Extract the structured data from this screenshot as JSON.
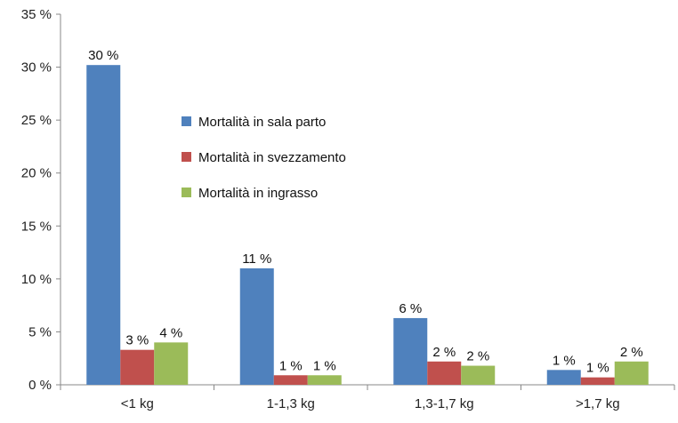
{
  "chart_data": {
    "type": "bar",
    "categories": [
      "<1 kg",
      "1-1,3 kg",
      "1,3-1,7 kg",
      ">1,7 kg"
    ],
    "series": [
      {
        "name": "Mortalità in sala parto",
        "color": "#4f81bd",
        "values": [
          30.2,
          11.0,
          6.3,
          1.4
        ],
        "labels": [
          "30 %",
          "11 %",
          "6 %",
          "1 %"
        ]
      },
      {
        "name": "Mortalità in svezzamento",
        "color": "#c0504d",
        "values": [
          3.3,
          0.9,
          2.2,
          0.7
        ],
        "labels": [
          "3 %",
          "1 %",
          "2 %",
          "1 %"
        ]
      },
      {
        "name": "Mortalità in ingrasso",
        "color": "#9bbb59",
        "values": [
          4.0,
          0.9,
          1.8,
          2.2
        ],
        "labels": [
          "4 %",
          "1 %",
          "2 %",
          "2 %"
        ]
      }
    ],
    "yticks": [
      0,
      5,
      10,
      15,
      20,
      25,
      30,
      35
    ],
    "ytick_labels": [
      "0 %",
      "5 %",
      "10 %",
      "15 %",
      "20 %",
      "25 %",
      "30 %",
      "35 %"
    ],
    "ylim": [
      0,
      35
    ],
    "title": "",
    "xlabel": "",
    "ylabel": "",
    "grid": false,
    "legend_position": "inside-center"
  }
}
